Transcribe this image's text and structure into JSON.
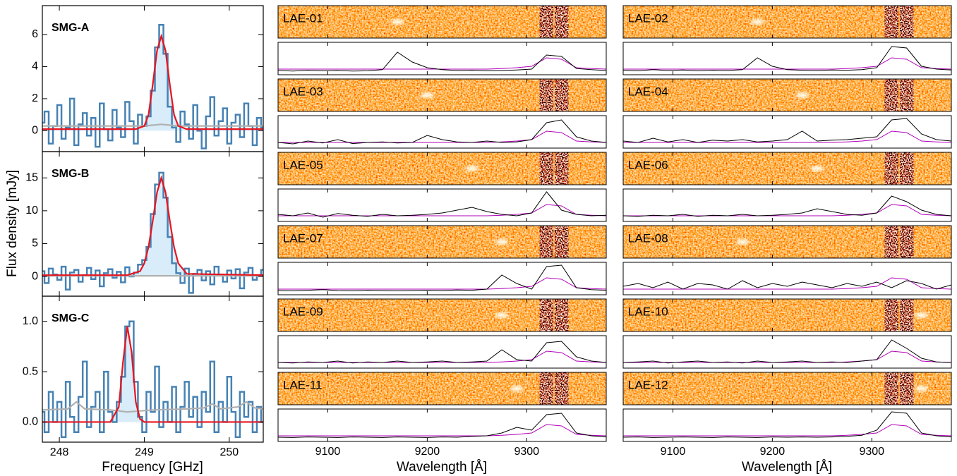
{
  "chart_data": [
    {
      "type": "step",
      "xlabel": "Frequency [GHz]",
      "ylabel": "Flux density [mJy]",
      "xlim": [
        247.8,
        250.4
      ],
      "xticks": [
        248,
        249,
        250
      ],
      "x": [
        247.8,
        247.85,
        247.9,
        247.95,
        248.0,
        248.05,
        248.1,
        248.15,
        248.2,
        248.25,
        248.3,
        248.35,
        248.4,
        248.45,
        248.5,
        248.55,
        248.6,
        248.65,
        248.7,
        248.75,
        248.8,
        248.85,
        248.9,
        248.95,
        249.0,
        249.05,
        249.1,
        249.15,
        249.2,
        249.25,
        249.3,
        249.35,
        249.4,
        249.45,
        249.5,
        249.55,
        249.6,
        249.65,
        249.7,
        249.75,
        249.8,
        249.85,
        249.9,
        249.95,
        250.0,
        250.05,
        250.1,
        250.15,
        250.2,
        250.25,
        250.3,
        250.35,
        250.4
      ],
      "panels": [
        {
          "label": "SMG-A",
          "ylim": [
            -1.3,
            7.8
          ],
          "yticks": [
            0,
            2,
            4,
            6
          ],
          "flux": [
            0.5,
            1.2,
            -0.8,
            0.3,
            1.6,
            -0.5,
            0.2,
            2.0,
            -0.9,
            0.4,
            1.1,
            -0.3,
            0.8,
            -1.0,
            1.7,
            0.1,
            -0.6,
            1.3,
            0.2,
            -0.4,
            1.8,
            0.6,
            -0.8,
            1.0,
            0.3,
            0.9,
            2.5,
            5.2,
            6.6,
            4.8,
            1.5,
            0.2,
            -0.7,
            1.2,
            0.4,
            -0.5,
            1.6,
            0.0,
            -1.1,
            0.9,
            2.1,
            -0.3,
            0.6,
            1.4,
            -0.8,
            0.5,
            1.0,
            -0.4,
            1.7,
            0.3,
            -0.9,
            0.8,
            0.2
          ],
          "fit_x": [
            247.8,
            248.9,
            249.0,
            249.05,
            249.1,
            249.15,
            249.2,
            249.25,
            249.3,
            249.35,
            249.4,
            249.5,
            250.4
          ],
          "fit": [
            0.1,
            0.1,
            0.3,
            1.0,
            2.9,
            5.0,
            5.9,
            5.0,
            2.9,
            1.0,
            0.3,
            0.1,
            0.1
          ],
          "noise_x": [
            247.8,
            249.0,
            249.2,
            249.4,
            250.4
          ],
          "noise": [
            0.3,
            0.3,
            0.4,
            0.3,
            0.3
          ]
        },
        {
          "label": "SMG-B",
          "ylim": [
            -3,
            19
          ],
          "yticks": [
            0,
            5,
            10,
            15
          ],
          "flux": [
            0.8,
            -1.0,
            1.2,
            0.3,
            -0.5,
            1.5,
            -2.0,
            0.6,
            1.0,
            -0.8,
            0.2,
            1.3,
            -0.4,
            0.9,
            -1.5,
            0.5,
            1.1,
            -0.2,
            0.7,
            -0.9,
            1.4,
            0.0,
            0.6,
            1.8,
            2.5,
            4.5,
            9.5,
            14.0,
            15.8,
            12.0,
            6.0,
            2.0,
            0.5,
            -1.0,
            1.2,
            -2.5,
            0.4,
            1.0,
            -0.6,
            0.8,
            -1.2,
            1.5,
            0.3,
            -0.8,
            0.9,
            -0.3,
            1.1,
            -1.8,
            0.6,
            1.3,
            -0.5,
            0.2,
            1.0
          ],
          "fit_x": [
            247.8,
            248.8,
            248.95,
            249.0,
            249.05,
            249.1,
            249.15,
            249.2,
            249.25,
            249.3,
            249.35,
            249.4,
            249.5,
            250.4
          ],
          "fit": [
            0.2,
            0.2,
            0.8,
            2.0,
            4.5,
            8.5,
            12.8,
            15.0,
            12.8,
            8.5,
            4.5,
            2.0,
            0.4,
            0.2
          ],
          "noise_x": [
            247.8,
            250.4
          ],
          "noise": [
            0.1,
            0.1
          ]
        },
        {
          "label": "SMG-C",
          "ylim": [
            -0.2,
            1.25
          ],
          "yticks": [
            {
              "value": 0,
              "label": "0.0"
            },
            0.5,
            {
              "value": 1,
              "label": "1.0"
            }
          ],
          "flux": [
            0.1,
            -0.1,
            0.3,
            0.0,
            0.2,
            -0.15,
            0.4,
            0.05,
            -0.1,
            0.25,
            0.6,
            -0.05,
            0.15,
            0.3,
            -0.1,
            0.5,
            0.1,
            0.0,
            0.2,
            0.45,
            0.95,
            1.0,
            0.4,
            0.05,
            -0.1,
            0.3,
            0.1,
            0.55,
            -0.05,
            0.2,
            0.0,
            0.35,
            -0.1,
            0.15,
            0.4,
            0.05,
            0.25,
            -0.05,
            0.3,
            0.1,
            0.6,
            -0.1,
            0.2,
            0.0,
            0.45,
            0.1,
            -0.15,
            0.3,
            0.05,
            0.2,
            -0.1,
            0.15,
            0.0
          ],
          "fit_x": [
            247.8,
            248.6,
            248.7,
            248.75,
            248.8,
            248.85,
            248.9,
            248.95,
            249.0,
            250.4
          ],
          "fit": [
            0,
            0,
            0.15,
            0.6,
            0.95,
            0.7,
            0.2,
            0.03,
            0,
            0
          ],
          "noise_x": [
            247.8,
            248.1,
            248.2,
            248.3,
            248.6,
            248.8,
            249.1,
            249.5,
            249.7,
            249.8,
            249.9,
            250.1,
            250.2,
            250.3,
            250.4
          ],
          "noise": [
            0.12,
            0.13,
            0.2,
            0.13,
            0.12,
            0.1,
            0.12,
            0.13,
            0.14,
            0.18,
            0.13,
            0.15,
            0.2,
            0.14,
            0.13
          ]
        }
      ]
    },
    {
      "type": "spectra",
      "xlabel": "Wavelength [Å]",
      "xlim": [
        9050,
        9380
      ],
      "xticks": [
        9100,
        9200,
        9300
      ],
      "ylim": [
        -0.1,
        1.05
      ],
      "x": [
        9050,
        9065,
        9080,
        9095,
        9110,
        9125,
        9140,
        9155,
        9170,
        9185,
        9200,
        9215,
        9230,
        9245,
        9260,
        9275,
        9290,
        9305,
        9320,
        9335,
        9350,
        9365,
        9380
      ],
      "sky": [
        0.1,
        0.1,
        0.1,
        0.1,
        0.1,
        0.1,
        0.1,
        0.1,
        0.1,
        0.1,
        0.1,
        0.1,
        0.1,
        0.1,
        0.1,
        0.12,
        0.15,
        0.2,
        0.5,
        0.45,
        0.15,
        0.12,
        0.1
      ],
      "panels": [
        {
          "label": "LAE-01",
          "flux": [
            0.05,
            0.03,
            0.06,
            0.04,
            0.05,
            0.03,
            0.04,
            0.08,
            0.7,
            0.35,
            0.15,
            0.08,
            0.05,
            0.06,
            0.04,
            0.05,
            0.07,
            0.1,
            0.6,
            0.55,
            0.12,
            0.08,
            0.05
          ]
        },
        {
          "label": "LAE-02",
          "flux": [
            0.06,
            0.04,
            0.08,
            0.05,
            0.07,
            0.04,
            0.06,
            0.05,
            0.08,
            0.5,
            0.2,
            0.08,
            0.06,
            0.05,
            0.07,
            0.06,
            0.08,
            0.15,
            0.9,
            0.85,
            0.2,
            0.1,
            0.07
          ]
        },
        {
          "label": "LAE-03",
          "flux": [
            0.1,
            0.05,
            0.15,
            0.08,
            0.2,
            0.06,
            0.1,
            0.12,
            0.08,
            0.1,
            0.35,
            0.2,
            0.12,
            0.1,
            0.15,
            0.1,
            0.12,
            0.2,
            0.8,
            0.9,
            0.3,
            0.15,
            0.1
          ]
        },
        {
          "label": "LAE-04",
          "flux": [
            0.15,
            0.1,
            0.25,
            0.12,
            0.2,
            0.1,
            0.18,
            0.15,
            0.2,
            0.12,
            0.15,
            0.2,
            0.5,
            0.15,
            0.18,
            0.2,
            0.25,
            0.3,
            0.9,
            0.95,
            0.4,
            0.2,
            0.15
          ]
        },
        {
          "label": "LAE-05",
          "flux": [
            0.15,
            0.1,
            0.2,
            0.05,
            0.18,
            0.12,
            0.08,
            0.15,
            0.1,
            0.12,
            0.15,
            0.2,
            0.3,
            0.4,
            0.25,
            0.15,
            0.1,
            0.2,
            0.95,
            0.3,
            0.15,
            0.1,
            0.12
          ]
        },
        {
          "label": "LAE-06",
          "flux": [
            0.1,
            0.08,
            0.12,
            0.1,
            0.15,
            0.08,
            0.12,
            0.1,
            0.15,
            0.1,
            0.12,
            0.15,
            0.2,
            0.35,
            0.25,
            0.15,
            0.12,
            0.2,
            0.8,
            0.6,
            0.3,
            0.15,
            0.1
          ]
        },
        {
          "label": "LAE-07",
          "flux": [
            0.05,
            0.04,
            0.06,
            0.08,
            0.05,
            0.04,
            0.06,
            0.05,
            0.04,
            0.05,
            0.06,
            0.05,
            0.07,
            0.06,
            0.1,
            0.6,
            0.3,
            0.1,
            0.9,
            0.95,
            0.15,
            0.08,
            0.06
          ]
        },
        {
          "label": "LAE-08",
          "flux": [
            0.2,
            0.3,
            0.15,
            0.35,
            0.1,
            0.3,
            0.25,
            0.1,
            0.4,
            0.15,
            0.3,
            0.2,
            0.35,
            0.25,
            0.15,
            0.3,
            0.2,
            0.35,
            0.15,
            0.4,
            0.3,
            0.1,
            0.25
          ]
        },
        {
          "label": "LAE-09",
          "flux": [
            0.1,
            0.08,
            0.12,
            0.1,
            0.15,
            0.08,
            0.12,
            0.1,
            0.15,
            0.1,
            0.12,
            0.15,
            0.1,
            0.12,
            0.15,
            0.55,
            0.2,
            0.15,
            0.8,
            0.85,
            0.3,
            0.15,
            0.1
          ]
        },
        {
          "label": "LAE-10",
          "flux": [
            0.1,
            0.12,
            0.15,
            0.08,
            0.12,
            0.15,
            0.1,
            0.12,
            0.08,
            0.15,
            0.1,
            0.12,
            0.15,
            0.1,
            0.12,
            0.1,
            0.15,
            0.2,
            0.9,
            0.6,
            0.25,
            0.12,
            0.1
          ]
        },
        {
          "label": "LAE-11",
          "flux": [
            0.05,
            0.04,
            0.06,
            0.05,
            0.04,
            0.06,
            0.05,
            0.04,
            0.06,
            0.05,
            0.04,
            0.06,
            0.05,
            0.08,
            0.1,
            0.2,
            0.4,
            0.3,
            0.85,
            0.9,
            0.2,
            0.1,
            0.06
          ]
        },
        {
          "label": "LAE-12",
          "flux": [
            0.05,
            0.06,
            0.04,
            0.05,
            0.06,
            0.05,
            0.04,
            0.06,
            0.05,
            0.04,
            0.06,
            0.05,
            0.06,
            0.05,
            0.06,
            0.08,
            0.12,
            0.3,
            0.95,
            0.9,
            0.2,
            0.1,
            0.06
          ]
        }
      ]
    }
  ]
}
